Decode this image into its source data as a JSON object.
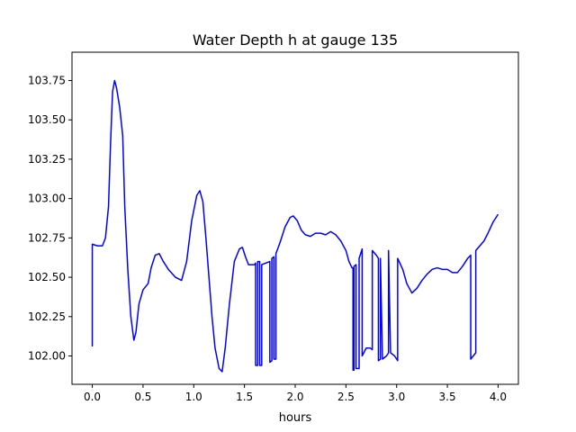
{
  "chart_data": {
    "type": "line",
    "title": "Water Depth h at gauge 135",
    "xlabel": "hours",
    "ylabel": "",
    "xlim": [
      -0.2,
      4.2
    ],
    "ylim": [
      101.82,
      103.93
    ],
    "xticks": [
      {
        "value": 0.0,
        "label": "0.0"
      },
      {
        "value": 0.5,
        "label": "0.5"
      },
      {
        "value": 1.0,
        "label": "1.0"
      },
      {
        "value": 1.5,
        "label": "1.5"
      },
      {
        "value": 2.0,
        "label": "2.0"
      },
      {
        "value": 2.5,
        "label": "2.5"
      },
      {
        "value": 3.0,
        "label": "3.0"
      },
      {
        "value": 3.5,
        "label": "3.5"
      },
      {
        "value": 4.0,
        "label": "4.0"
      }
    ],
    "yticks": [
      {
        "value": 102.0,
        "label": "102.00"
      },
      {
        "value": 102.25,
        "label": "102.25"
      },
      {
        "value": 102.5,
        "label": "102.50"
      },
      {
        "value": 102.75,
        "label": "102.75"
      },
      {
        "value": 103.0,
        "label": "103.00"
      },
      {
        "value": 103.25,
        "label": "103.25"
      },
      {
        "value": 103.5,
        "label": "103.50"
      },
      {
        "value": 103.75,
        "label": "103.75"
      }
    ],
    "grid": false,
    "series": [
      {
        "color": "#0000ff",
        "x": [
          0.0,
          0.0,
          0.05,
          0.1,
          0.13,
          0.16,
          0.18,
          0.2,
          0.22,
          0.24,
          0.27,
          0.3,
          0.32,
          0.35,
          0.38,
          0.41,
          0.43,
          0.46,
          0.5,
          0.55,
          0.58,
          0.62,
          0.66,
          0.7,
          0.75,
          0.82,
          0.88,
          0.93,
          0.98,
          1.03,
          1.06,
          1.09,
          1.12,
          1.15,
          1.18,
          1.21,
          1.25,
          1.28,
          1.31,
          1.35,
          1.4,
          1.45,
          1.48,
          1.51,
          1.54,
          1.57,
          1.6,
          1.61,
          1.61,
          1.63,
          1.63,
          1.65,
          1.65,
          1.67,
          1.67,
          1.75,
          1.75,
          1.77,
          1.77,
          1.79,
          1.79,
          1.81,
          1.81,
          1.85,
          1.9,
          1.95,
          1.98,
          2.02,
          2.06,
          2.1,
          2.15,
          2.2,
          2.25,
          2.3,
          2.35,
          2.4,
          2.45,
          2.5,
          2.53,
          2.56,
          2.57,
          2.57,
          2.58,
          2.58,
          2.6,
          2.6,
          2.63,
          2.63,
          2.66,
          2.66,
          2.7,
          2.74,
          2.76,
          2.76,
          2.8,
          2.82,
          2.82,
          2.84,
          2.84,
          2.86,
          2.9,
          2.92,
          2.92,
          2.94,
          2.98,
          3.01,
          3.01,
          3.06,
          3.1,
          3.15,
          3.2,
          3.25,
          3.3,
          3.35,
          3.4,
          3.45,
          3.5,
          3.55,
          3.6,
          3.65,
          3.7,
          3.73,
          3.73,
          3.78,
          3.78,
          3.82,
          3.86,
          3.9,
          3.95,
          4.0
        ],
        "y": [
          102.06,
          102.71,
          102.7,
          102.7,
          102.75,
          102.95,
          103.35,
          103.68,
          103.75,
          103.7,
          103.58,
          103.4,
          102.95,
          102.55,
          102.25,
          102.1,
          102.15,
          102.33,
          102.42,
          102.46,
          102.56,
          102.64,
          102.65,
          102.6,
          102.55,
          102.5,
          102.48,
          102.6,
          102.86,
          103.02,
          103.05,
          102.98,
          102.75,
          102.5,
          102.25,
          102.05,
          101.92,
          101.9,
          102.05,
          102.32,
          102.6,
          102.68,
          102.69,
          102.63,
          102.58,
          102.58,
          102.58,
          102.59,
          101.94,
          101.94,
          102.6,
          102.6,
          101.94,
          101.94,
          102.58,
          102.6,
          101.96,
          101.97,
          102.62,
          102.63,
          101.98,
          101.98,
          102.65,
          102.72,
          102.82,
          102.88,
          102.89,
          102.86,
          102.8,
          102.77,
          102.76,
          102.78,
          102.78,
          102.77,
          102.79,
          102.77,
          102.73,
          102.67,
          102.6,
          102.56,
          102.56,
          101.91,
          101.91,
          102.57,
          102.58,
          101.92,
          101.92,
          102.62,
          102.68,
          102.0,
          102.05,
          102.05,
          102.04,
          102.67,
          102.64,
          102.62,
          101.97,
          101.98,
          102.62,
          101.98,
          102.0,
          102.02,
          102.67,
          102.02,
          102.0,
          101.97,
          102.62,
          102.55,
          102.46,
          102.4,
          102.43,
          102.48,
          102.52,
          102.55,
          102.56,
          102.55,
          102.55,
          102.53,
          102.53,
          102.57,
          102.62,
          102.64,
          101.98,
          102.02,
          102.67,
          102.7,
          102.73,
          102.78,
          102.85,
          102.9
        ]
      }
    ]
  }
}
